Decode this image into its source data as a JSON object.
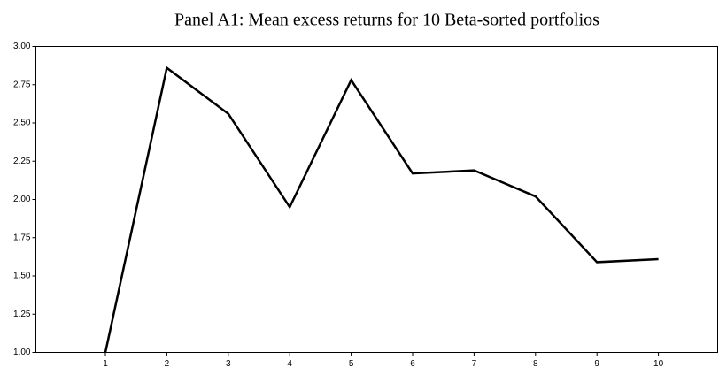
{
  "chart_data": {
    "type": "line",
    "title": "Panel A1: Mean excess returns for 10 Beta-sorted portfolios",
    "categories": [
      "1",
      "2",
      "3",
      "4",
      "5",
      "6",
      "7",
      "8",
      "9",
      "10"
    ],
    "values": [
      1.0,
      2.86,
      2.56,
      1.95,
      2.78,
      2.17,
      2.19,
      2.02,
      1.59,
      1.61
    ],
    "color": "#000000",
    "ylim": [
      1,
      3
    ],
    "yticks": [
      {
        "value": 1,
        "label": "1.00"
      },
      1.25,
      {
        "value": 1.5,
        "label": "1.50"
      },
      1.75,
      {
        "value": 2,
        "label": "2.00"
      },
      2.25,
      {
        "value": 2.5,
        "label": "2.50"
      },
      2.75,
      {
        "value": 3,
        "label": "3.00"
      }
    ],
    "grid": false
  }
}
